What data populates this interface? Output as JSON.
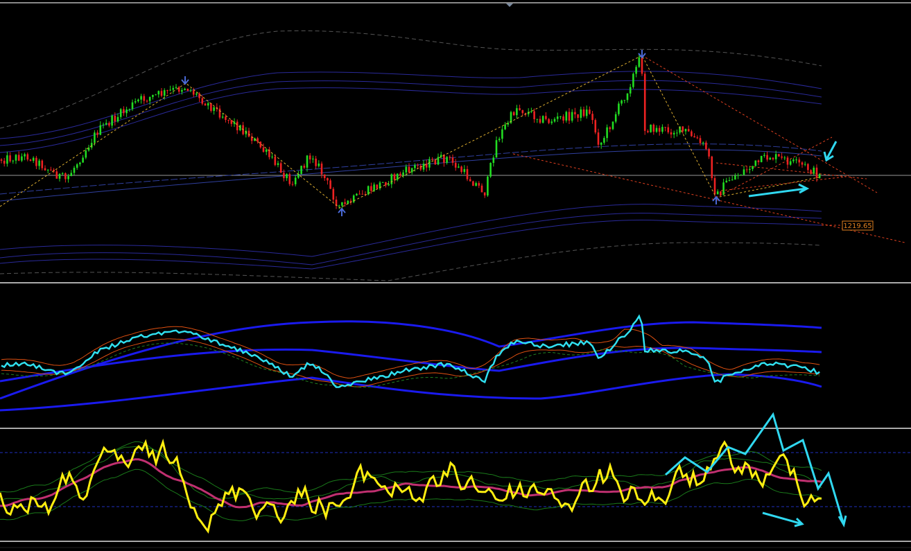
{
  "price_label": "1219.65"
}
